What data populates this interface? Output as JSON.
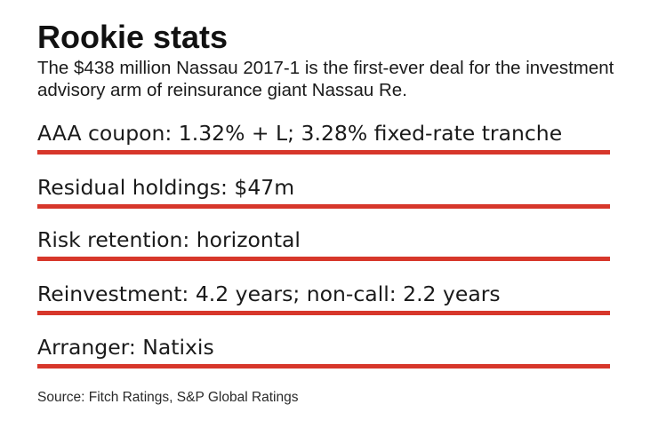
{
  "title": "Rookie stats",
  "subtitle": "The $438 million Nassau 2017-1 is the first-ever deal for the investment advisory arm of reinsurance giant Nassau Re.",
  "stats": [
    {
      "label": "AAA coupon: 1.32% + L; 3.28% fixed-rate tranche"
    },
    {
      "label": "Residual holdings: $47m"
    },
    {
      "label": "Risk retention: horizontal"
    },
    {
      "label": "Reinvestment: 4.2 years; non-call: 2.2 years"
    },
    {
      "label": "Arranger: Natixis"
    }
  ],
  "source": "Source: Fitch Ratings, S&P Global Ratings",
  "colors": {
    "accent_rule": "#d7372b",
    "text": "#1a1a1a",
    "background": "#ffffff"
  }
}
